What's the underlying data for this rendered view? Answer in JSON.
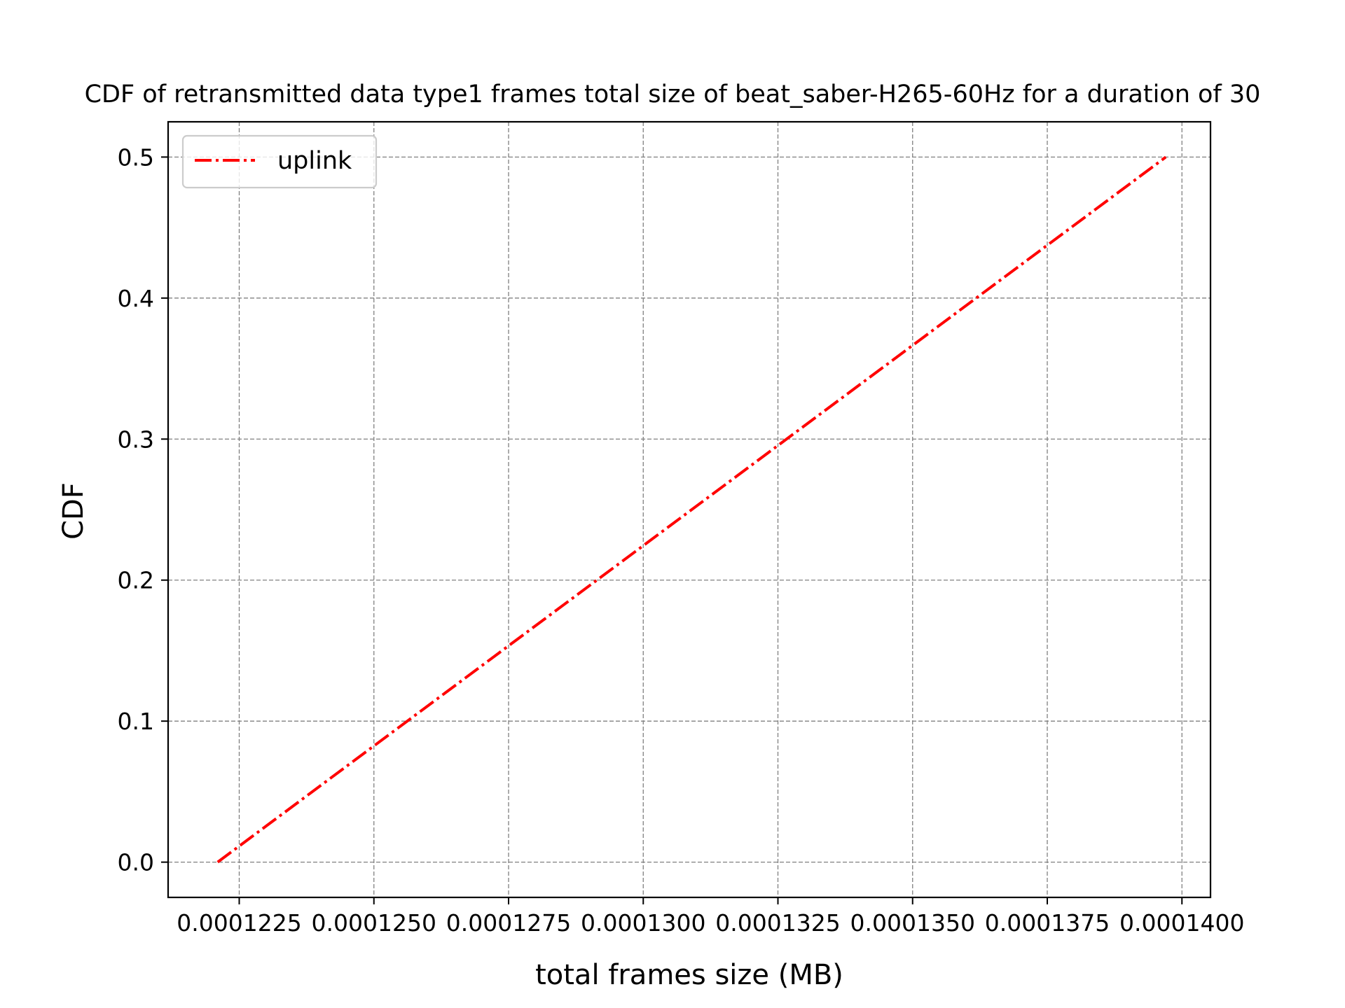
{
  "chart_data": {
    "type": "line",
    "title": "CDF of retransmitted data type1 frames total size of beat_saber-H265-60Hz for a duration of 30",
    "xlabel": "total frames size (MB)",
    "ylabel": "CDF",
    "xlim": [
      0.00012118,
      0.00014053
    ],
    "ylim": [
      -0.025,
      0.525
    ],
    "x_ticks": [
      {
        "value": 0.0001225,
        "label": "0.0001225"
      },
      {
        "value": 0.000125,
        "label": "0.0001250"
      },
      {
        "value": 0.0001275,
        "label": "0.0001275"
      },
      {
        "value": 0.00013,
        "label": "0.0001300"
      },
      {
        "value": 0.0001325,
        "label": "0.0001325"
      },
      {
        "value": 0.000135,
        "label": "0.0001350"
      },
      {
        "value": 0.0001375,
        "label": "0.0001375"
      },
      {
        "value": 0.00014,
        "label": "0.0001400"
      }
    ],
    "y_ticks": [
      {
        "value": 0.0,
        "label": "0.0"
      },
      {
        "value": 0.1,
        "label": "0.1"
      },
      {
        "value": 0.2,
        "label": "0.2"
      },
      {
        "value": 0.3,
        "label": "0.3"
      },
      {
        "value": 0.4,
        "label": "0.4"
      },
      {
        "value": 0.5,
        "label": "0.5"
      }
    ],
    "grid": true,
    "legend_position": "top-left",
    "series": [
      {
        "name": "uplink",
        "color": "#ff0000",
        "line_style": "dashdot",
        "x": [
          0.0001221,
          0.0001397
        ],
        "y": [
          0.0,
          0.5
        ]
      }
    ]
  }
}
